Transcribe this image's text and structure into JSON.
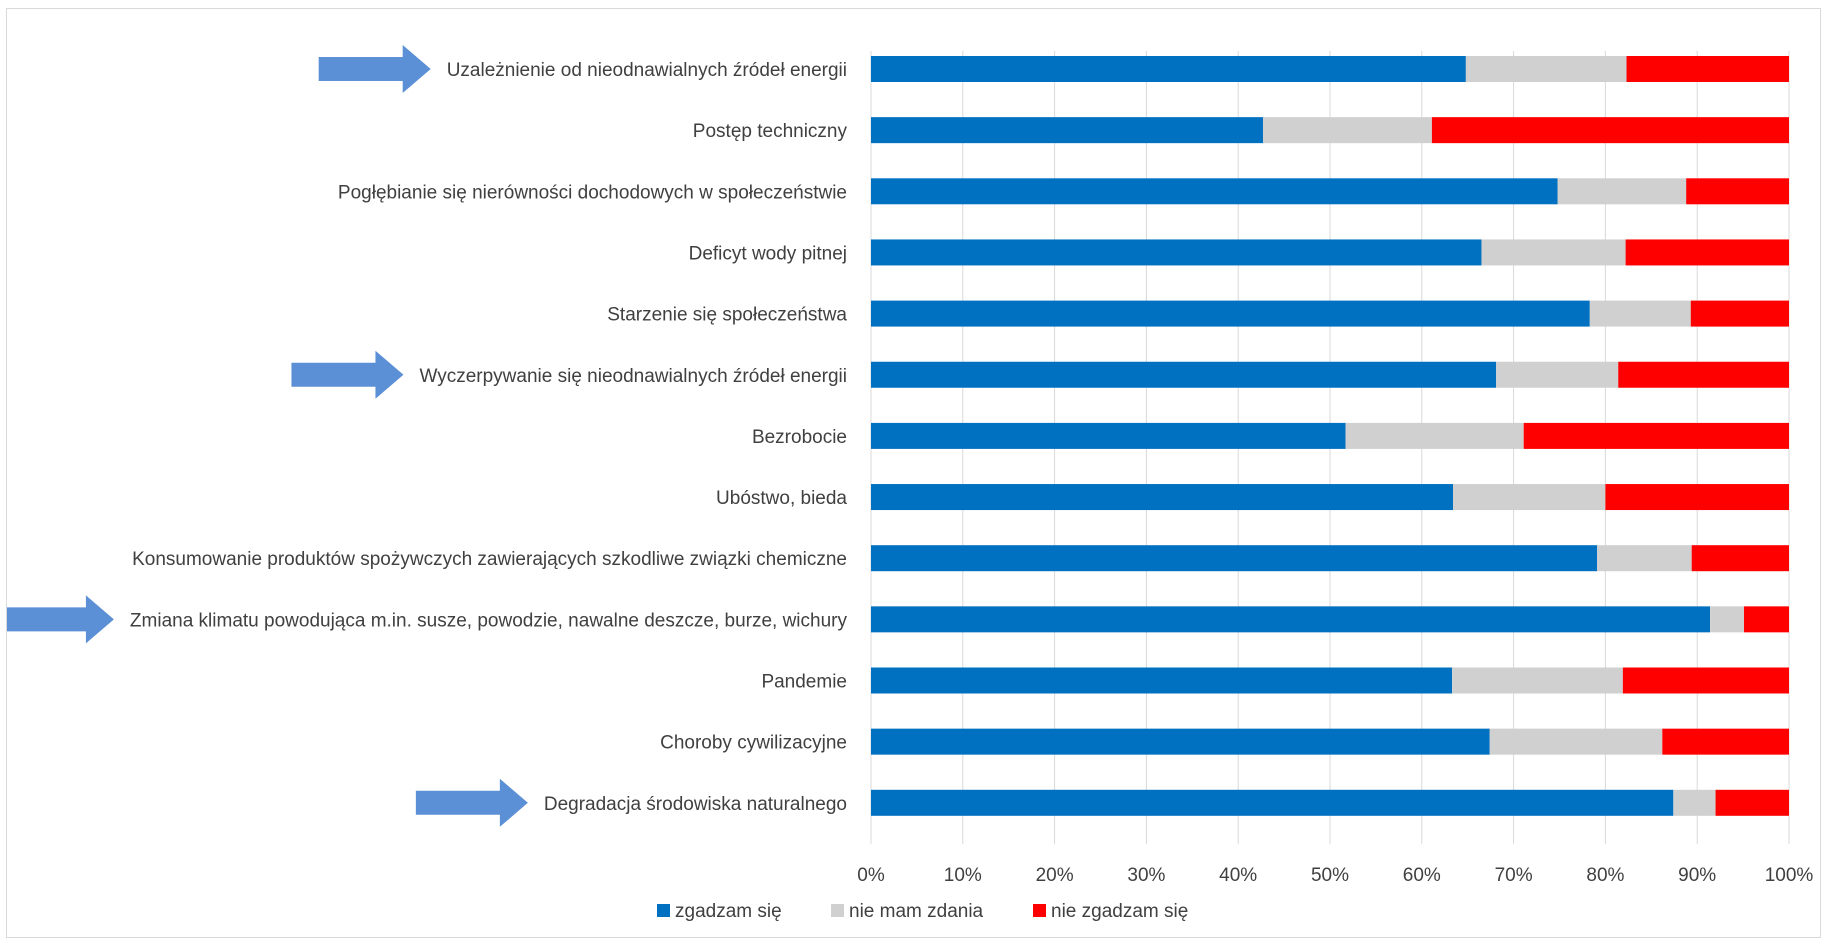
{
  "chart_data": {
    "type": "bar",
    "orientation": "horizontal",
    "stacked": "percent",
    "categories": [
      "Uzależnienie od nieodnawialnych źródeł energii",
      "Postęp techniczny",
      "Pogłębianie się nierówności dochodowych w społeczeństwie",
      "Deficyt wody pitnej",
      "Starzenie się społeczeństwa",
      "Wyczerpywanie się nieodnawialnych źródeł energii",
      "Bezrobocie",
      "Ubóstwo, bieda",
      "Konsumowanie produktów spożywczych zawierających szkodliwe związki chemiczne",
      "Zmiana klimatu powodująca m.in. susze, powodzie, nawalne deszcze, burze, wichury",
      "Pandemie",
      "Choroby cywilizacyjne",
      "Degradacja środowiska naturalnego"
    ],
    "series": [
      {
        "name": "zgadzam się",
        "color": "#0070c0",
        "values": [
          0.648,
          0.427,
          0.748,
          0.665,
          0.783,
          0.681,
          0.517,
          0.634,
          0.791,
          0.914,
          0.633,
          0.674,
          0.874
        ]
      },
      {
        "name": "nie mam zdania",
        "color": "#d0d0d0",
        "values": [
          0.175,
          0.184,
          0.14,
          0.157,
          0.11,
          0.133,
          0.194,
          0.166,
          0.103,
          0.037,
          0.186,
          0.188,
          0.046
        ]
      },
      {
        "name": "nie zgadzam się",
        "color": "#ff0000",
        "values": [
          0.177,
          0.389,
          0.112,
          0.178,
          0.107,
          0.186,
          0.289,
          0.2,
          0.106,
          0.049,
          0.181,
          0.138,
          0.08
        ]
      }
    ],
    "xlim": [
      0,
      1
    ],
    "x_ticks": [
      "0%",
      "10%",
      "20%",
      "30%",
      "40%",
      "50%",
      "60%",
      "70%",
      "80%",
      "90%",
      "100%"
    ],
    "grid": true,
    "legend_position": "bottom",
    "highlighted_categories": [
      "Uzależnienie od nieodnawialnych źródeł energii",
      "Wyczerpywanie się nieodnawialnych źródeł energii",
      "Zmiana klimatu powodująca m.in. susze, powodzie, nawalne deszcze, burze, wichury",
      "Degradacja środowiska naturalnego"
    ],
    "arrow_color": "#5b8fd6"
  }
}
